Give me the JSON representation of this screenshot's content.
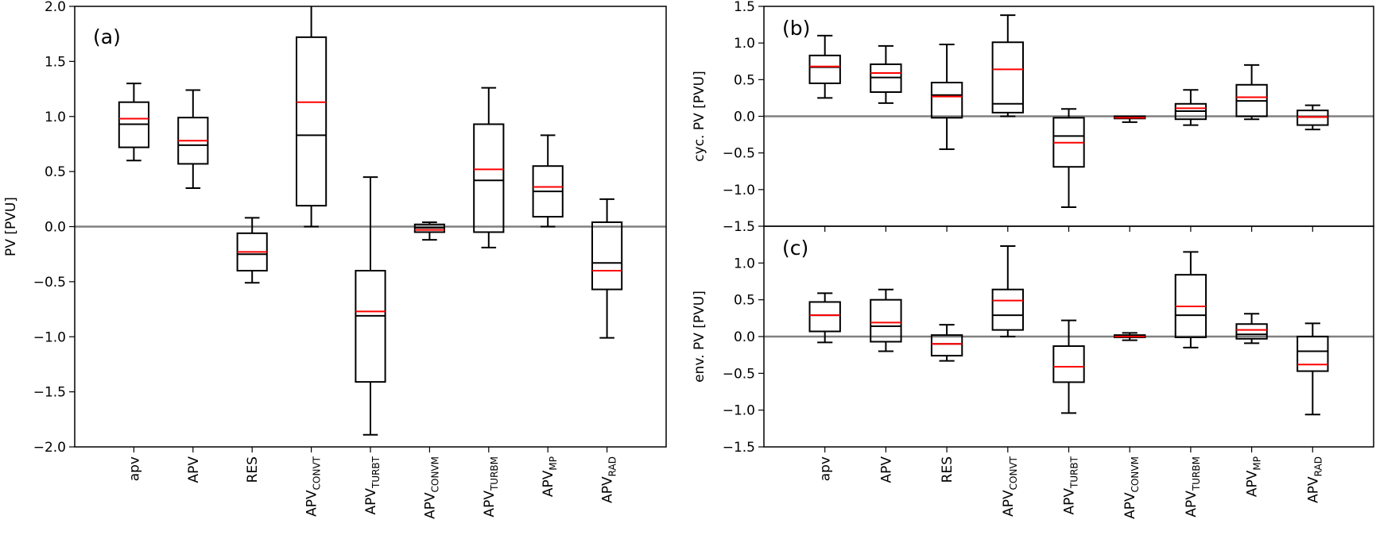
{
  "chart_data": [
    {
      "type": "box",
      "panel_label": "(a)",
      "ylabel": "PV [PVU]",
      "ylim": [
        -2.0,
        2.0
      ],
      "yticks": [
        "2.0",
        "1.5",
        "1.0",
        "0.5",
        "0.0",
        "−0.5",
        "−1.0",
        "−1.5",
        "−2.0"
      ],
      "ytick_values": [
        2.0,
        1.5,
        1.0,
        0.5,
        0.0,
        -0.5,
        -1.0,
        -1.5,
        -2.0
      ],
      "zero_line": true,
      "show_xticklabels": true,
      "categories": [
        {
          "base": "apv",
          "sub": ""
        },
        {
          "base": "APV",
          "sub": ""
        },
        {
          "base": "RES",
          "sub": ""
        },
        {
          "base": "APV",
          "sub": "CONVT"
        },
        {
          "base": "APV",
          "sub": "TURBT"
        },
        {
          "base": "APV",
          "sub": "CONVM"
        },
        {
          "base": "APV",
          "sub": "TURBM"
        },
        {
          "base": "APV",
          "sub": "MP"
        },
        {
          "base": "APV",
          "sub": "RAD"
        }
      ],
      "boxes": [
        {
          "whislo": 0.6,
          "q1": 0.72,
          "median": 0.93,
          "mean": 0.98,
          "q3": 1.13,
          "whishi": 1.3
        },
        {
          "whislo": 0.35,
          "q1": 0.57,
          "median": 0.74,
          "mean": 0.78,
          "q3": 0.99,
          "whishi": 1.24
        },
        {
          "whislo": -0.51,
          "q1": -0.4,
          "median": -0.25,
          "mean": -0.23,
          "q3": -0.06,
          "whishi": 0.08
        },
        {
          "whislo": 0.0,
          "q1": 0.19,
          "median": 0.83,
          "mean": 1.13,
          "q3": 1.72,
          "whishi": 2.1
        },
        {
          "whislo": -1.89,
          "q1": -1.41,
          "median": -0.81,
          "mean": -0.77,
          "q3": -0.4,
          "whishi": 0.45
        },
        {
          "whislo": -0.12,
          "q1": -0.05,
          "median": -0.01,
          "mean": -0.03,
          "q3": 0.02,
          "whishi": 0.04
        },
        {
          "whislo": -0.19,
          "q1": -0.05,
          "median": 0.42,
          "mean": 0.52,
          "q3": 0.93,
          "whishi": 1.26
        },
        {
          "whislo": 0.0,
          "q1": 0.09,
          "median": 0.32,
          "mean": 0.36,
          "q3": 0.55,
          "whishi": 0.83
        },
        {
          "whislo": -1.01,
          "q1": -0.57,
          "median": -0.33,
          "mean": -0.4,
          "q3": 0.04,
          "whishi": 0.25
        }
      ]
    },
    {
      "type": "box",
      "panel_label": "(b)",
      "ylabel": "cyc. PV [PVU]",
      "ylim": [
        -1.5,
        1.5
      ],
      "yticks": [
        "1.5",
        "1.0",
        "0.5",
        "0.0",
        "−0.5",
        "−1.0",
        "−1.5"
      ],
      "ytick_values": [
        1.5,
        1.0,
        0.5,
        0.0,
        -0.5,
        -1.0,
        -1.5
      ],
      "zero_line": true,
      "show_xticklabels": false,
      "categories": [
        {
          "base": "apv",
          "sub": ""
        },
        {
          "base": "APV",
          "sub": ""
        },
        {
          "base": "RES",
          "sub": ""
        },
        {
          "base": "APV",
          "sub": "CONVT"
        },
        {
          "base": "APV",
          "sub": "TURBT"
        },
        {
          "base": "APV",
          "sub": "CONVM"
        },
        {
          "base": "APV",
          "sub": "TURBM"
        },
        {
          "base": "APV",
          "sub": "MP"
        },
        {
          "base": "APV",
          "sub": "RAD"
        }
      ],
      "boxes": [
        {
          "whislo": 0.25,
          "q1": 0.45,
          "median": 0.67,
          "mean": 0.68,
          "q3": 0.83,
          "whishi": 1.1
        },
        {
          "whislo": 0.18,
          "q1": 0.33,
          "median": 0.53,
          "mean": 0.59,
          "q3": 0.71,
          "whishi": 0.96
        },
        {
          "whislo": -0.45,
          "q1": -0.02,
          "median": 0.29,
          "mean": 0.27,
          "q3": 0.46,
          "whishi": 0.98
        },
        {
          "whislo": 0.0,
          "q1": 0.05,
          "median": 0.17,
          "mean": 0.64,
          "q3": 1.01,
          "whishi": 1.38
        },
        {
          "whislo": -1.24,
          "q1": -0.69,
          "median": -0.27,
          "mean": -0.36,
          "q3": -0.02,
          "whishi": 0.1
        },
        {
          "whislo": -0.08,
          "q1": -0.03,
          "median": -0.02,
          "mean": -0.02,
          "q3": 0.0,
          "whishi": 0.0
        },
        {
          "whislo": -0.12,
          "q1": -0.04,
          "median": 0.07,
          "mean": 0.11,
          "q3": 0.17,
          "whishi": 0.36
        },
        {
          "whislo": -0.04,
          "q1": 0.0,
          "median": 0.21,
          "mean": 0.26,
          "q3": 0.43,
          "whishi": 0.7
        },
        {
          "whislo": -0.18,
          "q1": -0.12,
          "median": -0.01,
          "mean": -0.01,
          "q3": 0.08,
          "whishi": 0.15
        }
      ]
    },
    {
      "type": "box",
      "panel_label": "(c)",
      "ylabel": "env. PV [PVU]",
      "ylim": [
        -1.5,
        1.5
      ],
      "yticks": [
        "1.0",
        "0.5",
        "0.0",
        "−0.5",
        "−1.0",
        "−1.5"
      ],
      "ytick_values": [
        1.0,
        0.5,
        0.0,
        -0.5,
        -1.0,
        -1.5
      ],
      "zero_line": true,
      "show_xticklabels": true,
      "categories": [
        {
          "base": "apv",
          "sub": ""
        },
        {
          "base": "APV",
          "sub": ""
        },
        {
          "base": "RES",
          "sub": ""
        },
        {
          "base": "APV",
          "sub": "CONVT"
        },
        {
          "base": "APV",
          "sub": "TURBT"
        },
        {
          "base": "APV",
          "sub": "CONVM"
        },
        {
          "base": "APV",
          "sub": "TURBM"
        },
        {
          "base": "APV",
          "sub": "MP"
        },
        {
          "base": "APV",
          "sub": "RAD"
        }
      ],
      "boxes": [
        {
          "whislo": -0.08,
          "q1": 0.07,
          "median": 0.29,
          "mean": 0.29,
          "q3": 0.47,
          "whishi": 0.59
        },
        {
          "whislo": -0.2,
          "q1": -0.07,
          "median": 0.14,
          "mean": 0.19,
          "q3": 0.5,
          "whishi": 0.64
        },
        {
          "whislo": -0.33,
          "q1": -0.26,
          "median": -0.1,
          "mean": -0.1,
          "q3": 0.02,
          "whishi": 0.16
        },
        {
          "whislo": 0.0,
          "q1": 0.09,
          "median": 0.29,
          "mean": 0.49,
          "q3": 0.64,
          "whishi": 1.23
        },
        {
          "whislo": -1.04,
          "q1": -0.62,
          "median": -0.41,
          "mean": -0.41,
          "q3": -0.13,
          "whishi": 0.22
        },
        {
          "whislo": -0.05,
          "q1": -0.01,
          "median": 0.0,
          "mean": 0.0,
          "q3": 0.02,
          "whishi": 0.05
        },
        {
          "whislo": -0.15,
          "q1": -0.01,
          "median": 0.29,
          "mean": 0.41,
          "q3": 0.84,
          "whishi": 1.15
        },
        {
          "whislo": -0.09,
          "q1": -0.03,
          "median": 0.03,
          "mean": 0.09,
          "q3": 0.17,
          "whishi": 0.31
        },
        {
          "whislo": -1.06,
          "q1": -0.47,
          "median": -0.2,
          "mean": -0.38,
          "q3": 0.0,
          "whishi": 0.18
        }
      ]
    }
  ],
  "colors": {
    "box": "#000000",
    "median": "#000000",
    "mean": "#ff0000",
    "zero_line": "#808080"
  }
}
